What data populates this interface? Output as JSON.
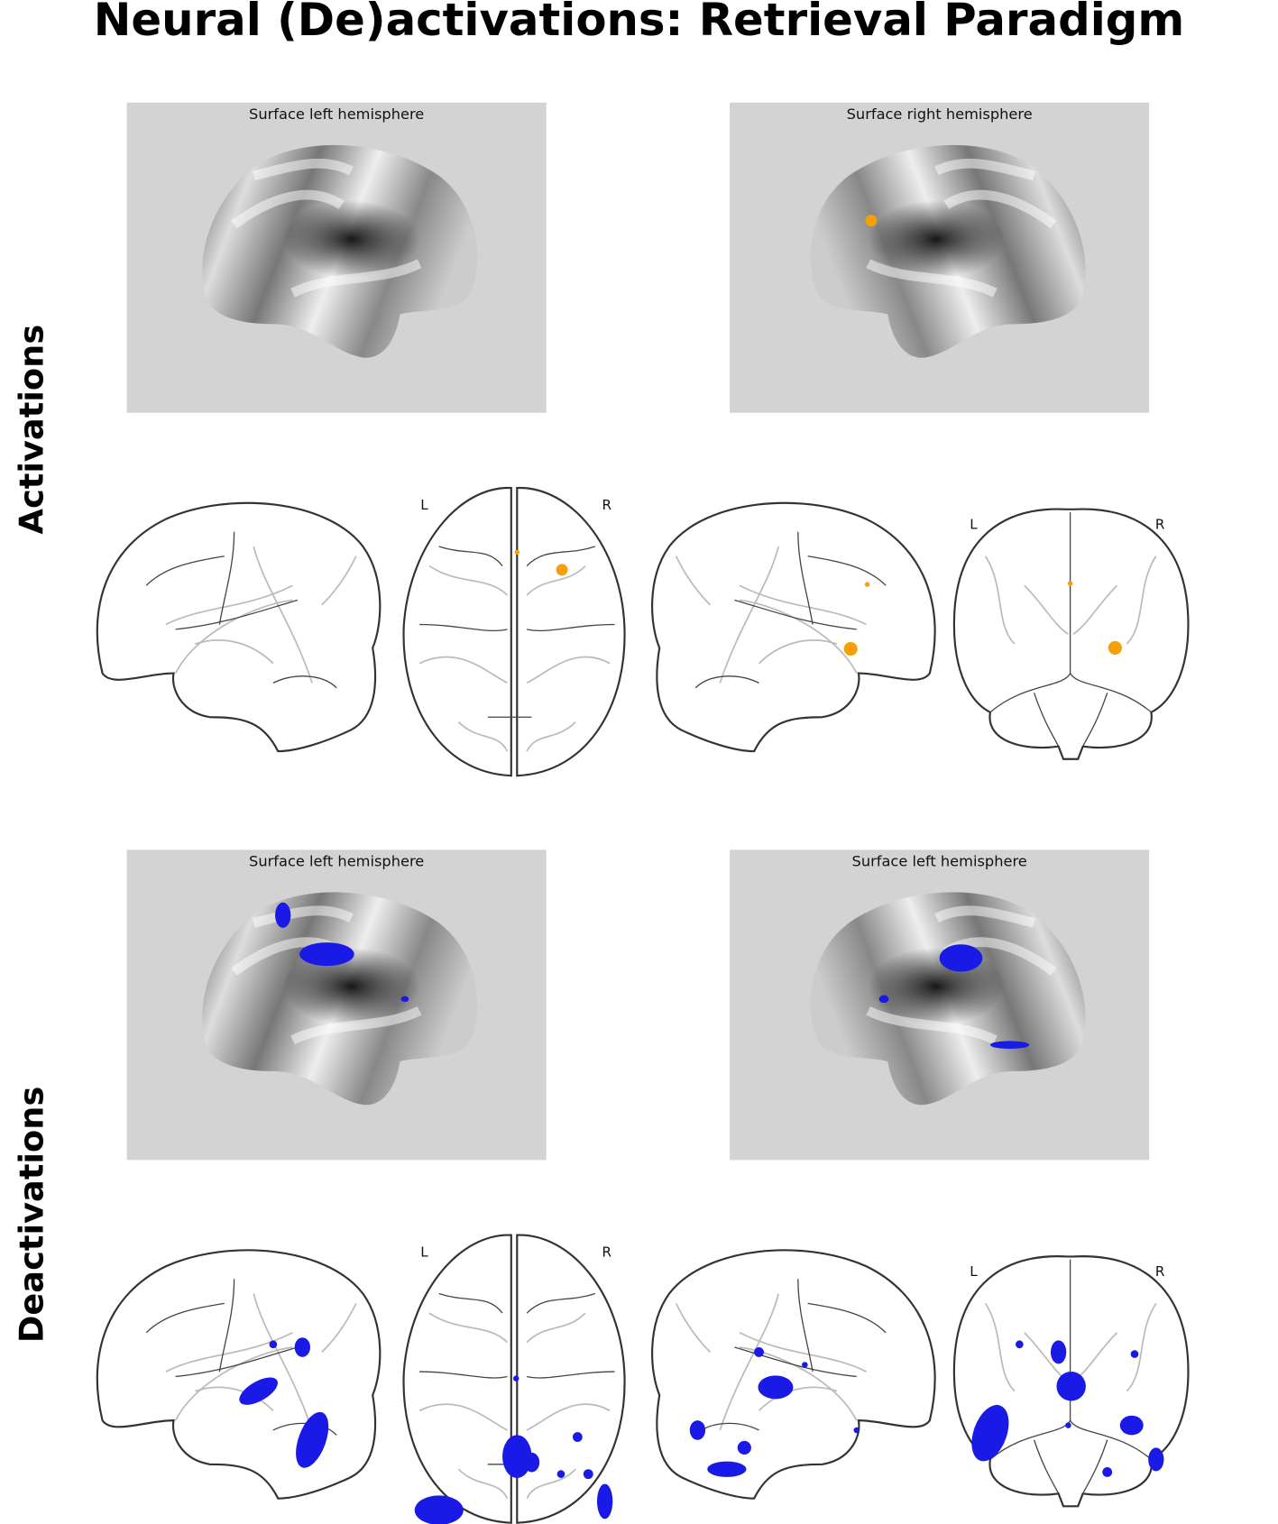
{
  "title": "Neural (De)activations: Retrieval Paradigm",
  "rows": [
    {
      "label": "Activations",
      "surfaces": [
        {
          "title": "Surface left hemisphere"
        },
        {
          "title": "Surface right hemisphere"
        }
      ],
      "axial": {
        "left": "L",
        "right": "R"
      },
      "coronal": {
        "left": "L",
        "right": "R"
      }
    },
    {
      "label": "Deactivations",
      "surfaces": [
        {
          "title": "Surface left hemisphere"
        },
        {
          "title": "Surface left hemisphere"
        }
      ],
      "axial": {
        "left": "L",
        "right": "R"
      },
      "coronal": {
        "left": "L",
        "right": "R"
      }
    }
  ]
}
